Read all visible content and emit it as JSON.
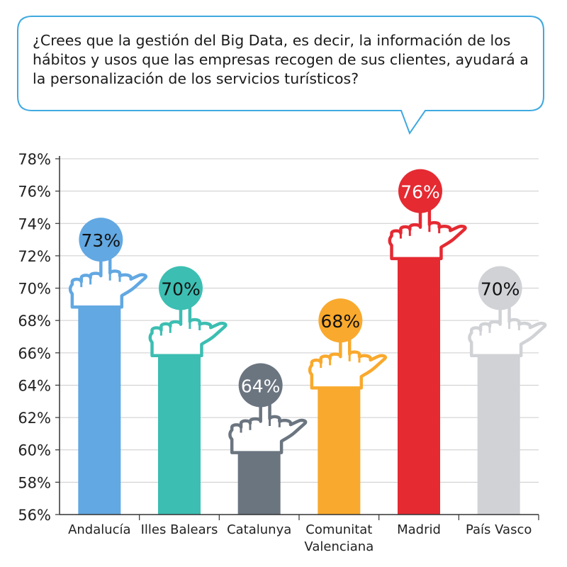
{
  "question": "¿Crees que la gestión del Big Data, es decir, la información de los hábitos y usos que las empresas recogen de sus clientes,  ayudará a la personalización de los servicios turísticos?",
  "colors": {
    "question_border": "#3fa9e0",
    "axis": "#333333",
    "grid": "#cccccc",
    "label_text": "#111111"
  },
  "chart_data": {
    "type": "bar",
    "title": "",
    "xlabel": "",
    "ylabel": "",
    "ylim": [
      56,
      78
    ],
    "yticks": [
      "56%",
      "58%",
      "60%",
      "62%",
      "64%",
      "66%",
      "68%",
      "70%",
      "72%",
      "74%",
      "76%",
      "78%"
    ],
    "grid": true,
    "legend": "none",
    "categories": [
      "Andalucía",
      "Illes Balears",
      "Catalunya",
      "Comunitat Valenciana",
      "Madrid",
      "País Vasco"
    ],
    "category_lines": [
      [
        "Andalucía"
      ],
      [
        "Illes Balears"
      ],
      [
        "Catalunya"
      ],
      [
        "Comunitat",
        "Valenciana"
      ],
      [
        "Madrid"
      ],
      [
        "País Vasco"
      ]
    ],
    "values": [
      73,
      70,
      64,
      68,
      76,
      70
    ],
    "value_labels": [
      "73%",
      "70%",
      "64%",
      "68%",
      "76%",
      "70%"
    ],
    "colors": [
      "#62a8e2",
      "#3cbeb2",
      "#6b7580",
      "#f9a92d",
      "#e52a32",
      "#d0d2d6"
    ],
    "label_text_colors": [
      "#111111",
      "#111111",
      "#ffffff",
      "#111111",
      "#ffffff",
      "#111111"
    ]
  }
}
